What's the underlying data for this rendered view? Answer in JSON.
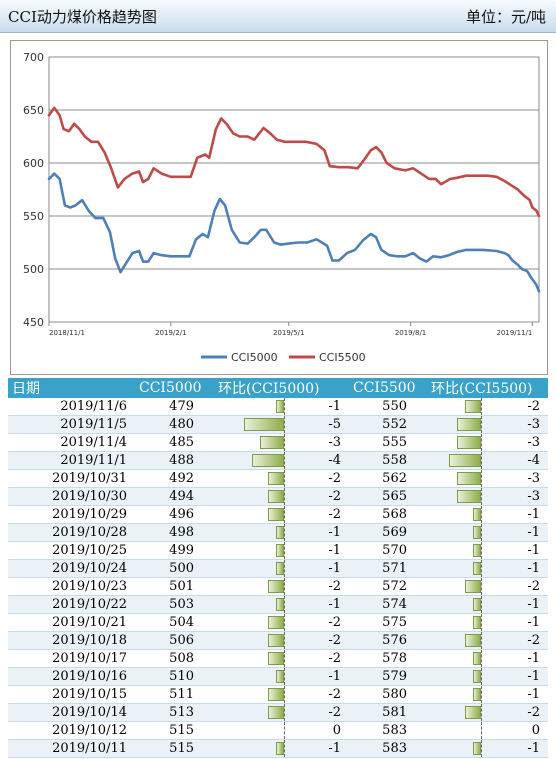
{
  "header": {
    "title": "CCI动力煤价格趋势图",
    "unit": "单位：元/吨"
  },
  "chart_data": {
    "type": "line",
    "ylim": [
      450,
      700
    ],
    "yticks": [
      450,
      500,
      550,
      600,
      650,
      700
    ],
    "xlim": [
      "2018-11-01",
      "2019-11-06"
    ],
    "xtick_labels": [
      "2018/11/1",
      "2019/2/1",
      "2019/5/1",
      "2019/8/1",
      "2019/11/1"
    ],
    "xtick_dates": [
      "2018-11-01",
      "2019-02-01",
      "2019-05-01",
      "2019-08-01",
      "2019-11-01"
    ],
    "grid": true,
    "legend_position": "bottom",
    "colors": {
      "CCI5000": "#4f7fb8",
      "CCI5500": "#be4b48"
    },
    "series": [
      {
        "name": "CCI5000",
        "points": [
          [
            "2018-11-01",
            585
          ],
          [
            "2018-11-05",
            590
          ],
          [
            "2018-11-09",
            585
          ],
          [
            "2018-11-13",
            560
          ],
          [
            "2018-11-17",
            558
          ],
          [
            "2018-11-21",
            560
          ],
          [
            "2018-11-26",
            565
          ],
          [
            "2018-12-01",
            555
          ],
          [
            "2018-12-06",
            548
          ],
          [
            "2018-12-12",
            548
          ],
          [
            "2018-12-17",
            535
          ],
          [
            "2018-12-21",
            510
          ],
          [
            "2018-12-25",
            497
          ],
          [
            "2018-12-29",
            505
          ],
          [
            "2019-01-03",
            515
          ],
          [
            "2019-01-08",
            517
          ],
          [
            "2019-01-11",
            507
          ],
          [
            "2019-01-15",
            507
          ],
          [
            "2019-01-19",
            515
          ],
          [
            "2019-01-25",
            513
          ],
          [
            "2019-02-01",
            512
          ],
          [
            "2019-02-10",
            512
          ],
          [
            "2019-02-15",
            512
          ],
          [
            "2019-02-20",
            528
          ],
          [
            "2019-02-25",
            533
          ],
          [
            "2019-03-01",
            530
          ],
          [
            "2019-03-06",
            555
          ],
          [
            "2019-03-10",
            566
          ],
          [
            "2019-03-14",
            560
          ],
          [
            "2019-03-19",
            537
          ],
          [
            "2019-03-25",
            525
          ],
          [
            "2019-03-31",
            524
          ],
          [
            "2019-04-05",
            530
          ],
          [
            "2019-04-10",
            537
          ],
          [
            "2019-04-14",
            537
          ],
          [
            "2019-04-20",
            525
          ],
          [
            "2019-04-25",
            523
          ],
          [
            "2019-05-01",
            524
          ],
          [
            "2019-05-08",
            525
          ],
          [
            "2019-05-15",
            525
          ],
          [
            "2019-05-22",
            528
          ],
          [
            "2019-05-30",
            522
          ],
          [
            "2019-06-03",
            508
          ],
          [
            "2019-06-08",
            508
          ],
          [
            "2019-06-14",
            515
          ],
          [
            "2019-06-20",
            518
          ],
          [
            "2019-06-26",
            527
          ],
          [
            "2019-07-02",
            533
          ],
          [
            "2019-07-06",
            530
          ],
          [
            "2019-07-10",
            518
          ],
          [
            "2019-07-16",
            513
          ],
          [
            "2019-07-22",
            512
          ],
          [
            "2019-07-28",
            512
          ],
          [
            "2019-08-03",
            515
          ],
          [
            "2019-08-08",
            510
          ],
          [
            "2019-08-13",
            507
          ],
          [
            "2019-08-18",
            512
          ],
          [
            "2019-08-24",
            511
          ],
          [
            "2019-08-30",
            513
          ],
          [
            "2019-09-05",
            516
          ],
          [
            "2019-09-12",
            518
          ],
          [
            "2019-09-25",
            518
          ],
          [
            "2019-10-05",
            517
          ],
          [
            "2019-10-11",
            515
          ],
          [
            "2019-10-14",
            513
          ],
          [
            "2019-10-17",
            508
          ],
          [
            "2019-10-21",
            504
          ],
          [
            "2019-10-24",
            500
          ],
          [
            "2019-10-28",
            498
          ],
          [
            "2019-10-31",
            492
          ],
          [
            "2019-11-04",
            485
          ],
          [
            "2019-11-06",
            479
          ]
        ]
      },
      {
        "name": "CCI5500",
        "points": [
          [
            "2018-11-01",
            645
          ],
          [
            "2018-11-05",
            652
          ],
          [
            "2018-11-09",
            645
          ],
          [
            "2018-11-12",
            632
          ],
          [
            "2018-11-16",
            630
          ],
          [
            "2018-11-20",
            637
          ],
          [
            "2018-11-24",
            632
          ],
          [
            "2018-11-28",
            625
          ],
          [
            "2018-12-03",
            620
          ],
          [
            "2018-12-08",
            620
          ],
          [
            "2018-12-13",
            610
          ],
          [
            "2018-12-18",
            595
          ],
          [
            "2018-12-23",
            577
          ],
          [
            "2018-12-28",
            585
          ],
          [
            "2019-01-03",
            590
          ],
          [
            "2019-01-08",
            592
          ],
          [
            "2019-01-11",
            582
          ],
          [
            "2019-01-15",
            585
          ],
          [
            "2019-01-19",
            595
          ],
          [
            "2019-01-25",
            590
          ],
          [
            "2019-02-01",
            587
          ],
          [
            "2019-02-10",
            587
          ],
          [
            "2019-02-16",
            587
          ],
          [
            "2019-02-21",
            605
          ],
          [
            "2019-02-27",
            608
          ],
          [
            "2019-03-02",
            605
          ],
          [
            "2019-03-07",
            632
          ],
          [
            "2019-03-11",
            642
          ],
          [
            "2019-03-15",
            637
          ],
          [
            "2019-03-20",
            628
          ],
          [
            "2019-03-25",
            625
          ],
          [
            "2019-03-31",
            625
          ],
          [
            "2019-04-05",
            622
          ],
          [
            "2019-04-12",
            633
          ],
          [
            "2019-04-17",
            628
          ],
          [
            "2019-04-22",
            622
          ],
          [
            "2019-04-28",
            620
          ],
          [
            "2019-05-05",
            620
          ],
          [
            "2019-05-14",
            620
          ],
          [
            "2019-05-22",
            618
          ],
          [
            "2019-05-28",
            612
          ],
          [
            "2019-06-01",
            597
          ],
          [
            "2019-06-08",
            596
          ],
          [
            "2019-06-15",
            596
          ],
          [
            "2019-06-22",
            595
          ],
          [
            "2019-06-27",
            603
          ],
          [
            "2019-07-02",
            612
          ],
          [
            "2019-07-06",
            615
          ],
          [
            "2019-07-10",
            610
          ],
          [
            "2019-07-14",
            600
          ],
          [
            "2019-07-20",
            595
          ],
          [
            "2019-07-28",
            593
          ],
          [
            "2019-08-03",
            595
          ],
          [
            "2019-08-09",
            590
          ],
          [
            "2019-08-15",
            585
          ],
          [
            "2019-08-20",
            585
          ],
          [
            "2019-08-24",
            580
          ],
          [
            "2019-08-31",
            585
          ],
          [
            "2019-09-05",
            586
          ],
          [
            "2019-09-12",
            588
          ],
          [
            "2019-09-20",
            588
          ],
          [
            "2019-09-28",
            588
          ],
          [
            "2019-10-05",
            587
          ],
          [
            "2019-10-11",
            583
          ],
          [
            "2019-10-16",
            579
          ],
          [
            "2019-10-21",
            575
          ],
          [
            "2019-10-25",
            570
          ],
          [
            "2019-10-30",
            565
          ],
          [
            "2019-11-01",
            558
          ],
          [
            "2019-11-04",
            555
          ],
          [
            "2019-11-06",
            550
          ]
        ]
      }
    ]
  },
  "table": {
    "headers": [
      "日期",
      "CCI5000",
      "环比(CCI5000)",
      "CCI5500",
      "环比(CCI5500)"
    ],
    "rows": [
      {
        "date": "2019/11/6",
        "cci5000": 479,
        "chg5000": -1,
        "cci5500": 550,
        "chg5500": -2
      },
      {
        "date": "2019/11/5",
        "cci5000": 480,
        "chg5000": -5,
        "cci5500": 552,
        "chg5500": -3
      },
      {
        "date": "2019/11/4",
        "cci5000": 485,
        "chg5000": -3,
        "cci5500": 555,
        "chg5500": -3
      },
      {
        "date": "2019/11/1",
        "cci5000": 488,
        "chg5000": -4,
        "cci5500": 558,
        "chg5500": -4
      },
      {
        "date": "2019/10/31",
        "cci5000": 492,
        "chg5000": -2,
        "cci5500": 562,
        "chg5500": -3
      },
      {
        "date": "2019/10/30",
        "cci5000": 494,
        "chg5000": -2,
        "cci5500": 565,
        "chg5500": -3
      },
      {
        "date": "2019/10/29",
        "cci5000": 496,
        "chg5000": -2,
        "cci5500": 568,
        "chg5500": -1
      },
      {
        "date": "2019/10/28",
        "cci5000": 498,
        "chg5000": -1,
        "cci5500": 569,
        "chg5500": -1
      },
      {
        "date": "2019/10/25",
        "cci5000": 499,
        "chg5000": -1,
        "cci5500": 570,
        "chg5500": -1
      },
      {
        "date": "2019/10/24",
        "cci5000": 500,
        "chg5000": -1,
        "cci5500": 571,
        "chg5500": -1
      },
      {
        "date": "2019/10/23",
        "cci5000": 501,
        "chg5000": -2,
        "cci5500": 572,
        "chg5500": -2
      },
      {
        "date": "2019/10/22",
        "cci5000": 503,
        "chg5000": -1,
        "cci5500": 574,
        "chg5500": -1
      },
      {
        "date": "2019/10/21",
        "cci5000": 504,
        "chg5000": -2,
        "cci5500": 575,
        "chg5500": -1
      },
      {
        "date": "2019/10/18",
        "cci5000": 506,
        "chg5000": -2,
        "cci5500": 576,
        "chg5500": -2
      },
      {
        "date": "2019/10/17",
        "cci5000": 508,
        "chg5000": -2,
        "cci5500": 578,
        "chg5500": -1
      },
      {
        "date": "2019/10/16",
        "cci5000": 510,
        "chg5000": -1,
        "cci5500": 579,
        "chg5500": -1
      },
      {
        "date": "2019/10/15",
        "cci5000": 511,
        "chg5000": -2,
        "cci5500": 580,
        "chg5500": -1
      },
      {
        "date": "2019/10/14",
        "cci5000": 513,
        "chg5000": -2,
        "cci5500": 581,
        "chg5500": -2
      },
      {
        "date": "2019/10/12",
        "cci5000": 515,
        "chg5000": 0,
        "cci5500": 583,
        "chg5500": 0
      },
      {
        "date": "2019/10/11",
        "cci5000": 515,
        "chg5000": -1,
        "cci5500": 583,
        "chg5500": -1
      }
    ]
  }
}
